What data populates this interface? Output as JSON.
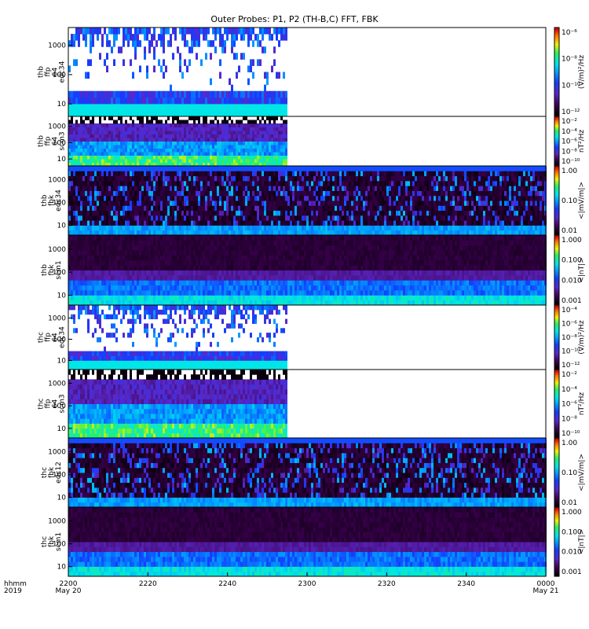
{
  "title": "Outer Probes: P1, P2 (TH-B,C) FFT, FBK",
  "chart_data": {
    "type": "heatmap",
    "x_axis": {
      "ticks": [
        "2200",
        "2220",
        "2240",
        "2300",
        "2320",
        "2340",
        "0000"
      ],
      "sublabels": [
        "May 20",
        "May 21"
      ],
      "left_label": [
        "hhmm",
        "2019"
      ]
    },
    "panels": [
      {
        "id": "thb-ffp-e34",
        "label": [
          "thb",
          "ffp",
          "64",
          "edc34"
        ],
        "y_ticks": [
          "1000",
          "100",
          "10"
        ],
        "colorbar_ticks": [
          "10⁻⁶",
          "10⁻⁸",
          "10⁻¹⁰",
          "10⁻¹²"
        ],
        "unit": "(V/m)²/Hz",
        "data_end": 0.455,
        "style": "spiky"
      },
      {
        "id": "thb-ffp-scm3",
        "label": [
          "thb",
          "ffp",
          "64",
          "scm3"
        ],
        "y_ticks": [
          "1000",
          "100",
          "10"
        ],
        "colorbar_ticks": [
          "10⁻²",
          "10⁻⁴",
          "10⁻⁶",
          "10⁻⁸",
          "10⁻¹⁰"
        ],
        "unit": "nT²/Hz",
        "data_end": 0.455,
        "style": "band"
      },
      {
        "id": "thb-fbk-e34",
        "label": [
          "thb",
          "fbk",
          "edc34"
        ],
        "y_ticks": [
          "1000",
          "100",
          "10"
        ],
        "colorbar_ticks": [
          "1.00",
          "0.10",
          "0.01"
        ],
        "unit": "<|mV/m|>",
        "data_end": 1.0,
        "style": "fbk_e"
      },
      {
        "id": "thb-fbk-scm1",
        "label": [
          "thb",
          "fbk",
          "scm1"
        ],
        "y_ticks": [
          "1000",
          "100",
          "10"
        ],
        "colorbar_ticks": [
          "1.000",
          "0.100",
          "0.010",
          "0.001"
        ],
        "unit": "<|nT|>",
        "data_end": 1.0,
        "style": "fbk_b"
      },
      {
        "id": "thc-ffp-e34",
        "label": [
          "thc",
          "ffp",
          "64",
          "edc34"
        ],
        "y_ticks": [
          "1000",
          "100",
          "10"
        ],
        "colorbar_ticks": [
          "10⁻⁴",
          "10⁻⁶",
          "10⁻⁸",
          "10⁻¹⁰",
          "10⁻¹²"
        ],
        "unit": "(V/m)²/Hz",
        "data_end": 0.455,
        "style": "spiky"
      },
      {
        "id": "thc-ffp-scm3",
        "label": [
          "thc",
          "ffp",
          "64",
          "scm3"
        ],
        "y_ticks": [
          "1000",
          "100",
          "10"
        ],
        "colorbar_ticks": [
          "10⁻²",
          "10⁻⁴",
          "10⁻⁶",
          "10⁻⁸",
          "10⁻¹⁰"
        ],
        "unit": "nT²/Hz",
        "data_end": 0.455,
        "style": "band"
      },
      {
        "id": "thc-fbk-e12",
        "label": [
          "thc",
          "fbk",
          "edc12"
        ],
        "y_ticks": [
          "1000",
          "100",
          "10"
        ],
        "colorbar_ticks": [
          "1.00",
          "0.10",
          "0.01"
        ],
        "unit": "<|mV/m|>",
        "data_end": 1.0,
        "style": "fbk_e"
      },
      {
        "id": "thc-fbk-scm1",
        "label": [
          "thc",
          "fbk",
          "scm1"
        ],
        "y_ticks": [
          "1000",
          "100",
          "10"
        ],
        "colorbar_ticks": [
          "1.000",
          "0.100",
          "0.010",
          "0.001"
        ],
        "unit": "<|nT|>",
        "data_end": 1.0,
        "style": "fbk_b"
      }
    ]
  }
}
